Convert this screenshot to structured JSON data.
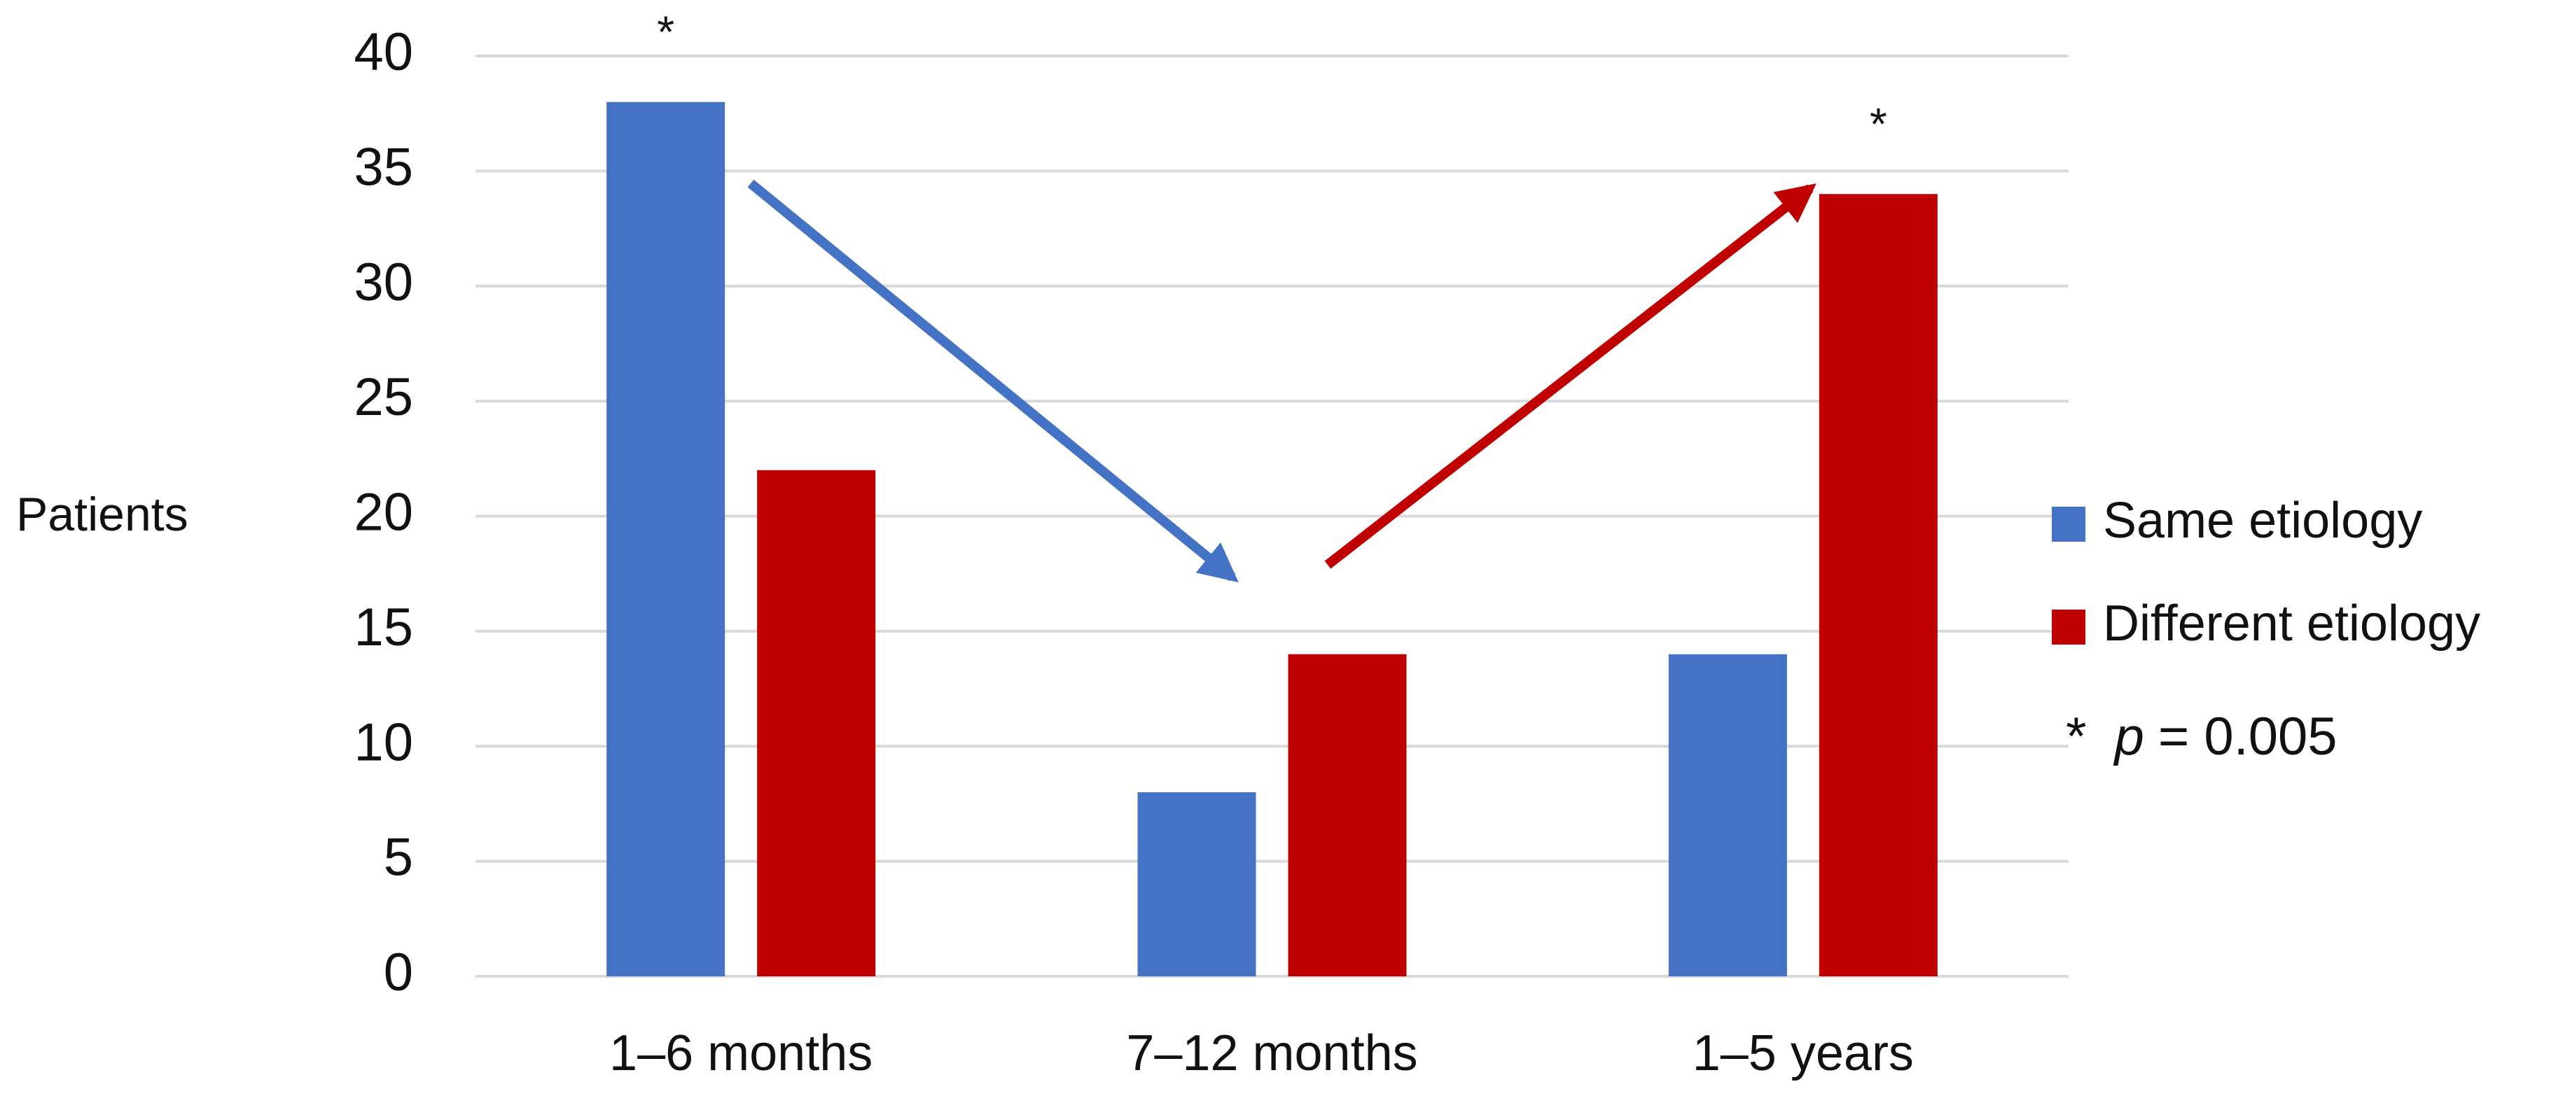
{
  "chart_data": {
    "type": "bar",
    "y_label": "Patients",
    "categories": [
      "1–6 months",
      "7–12 months",
      "1–5 years"
    ],
    "series": [
      {
        "name": "Same etiology",
        "color": "#4472c4",
        "values": [
          38,
          8,
          14
        ]
      },
      {
        "name": "Different etiology",
        "color": "#c00000",
        "values": [
          22,
          14,
          34
        ]
      }
    ],
    "ylim": [
      0,
      40
    ],
    "yticks": [
      0,
      5,
      10,
      15,
      20,
      25,
      30,
      35,
      40
    ],
    "grid": true,
    "annotations": [
      "*",
      "*"
    ],
    "note": {
      "symbol": "*",
      "variable": "p",
      "text": "= 0.005"
    },
    "legend": "right"
  }
}
